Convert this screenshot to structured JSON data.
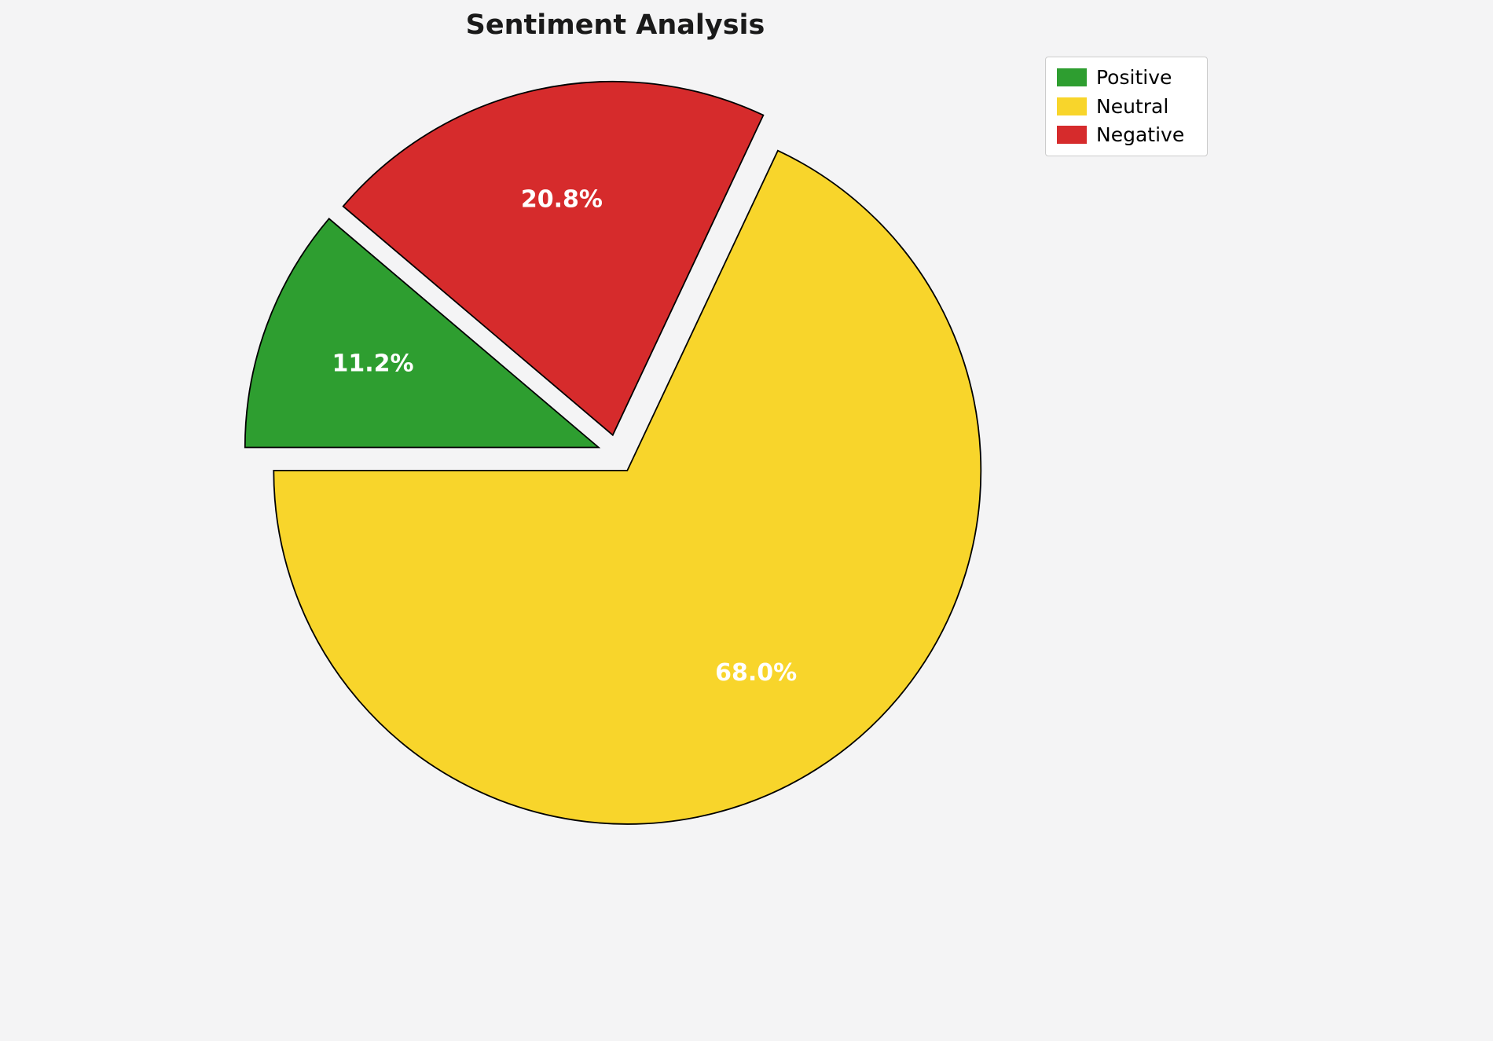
{
  "title": "Sentiment Analysis",
  "chart_data": {
    "type": "pie",
    "title": "Sentiment Analysis",
    "slices": [
      {
        "label": "Positive",
        "value": 11.2,
        "pct_label": "11.2%",
        "color": "#2e9e30"
      },
      {
        "label": "Negative",
        "value": 20.8,
        "pct_label": "20.8%",
        "color": "#d62b2c"
      },
      {
        "label": "Neutral",
        "value": 68.0,
        "pct_label": "68.0%",
        "color": "#f8d52b"
      }
    ],
    "legend_items": [
      {
        "label": "Positive",
        "color": "#2e9e30"
      },
      {
        "label": "Neutral",
        "color": "#f8d52b"
      },
      {
        "label": "Negative",
        "color": "#d62b2c"
      }
    ],
    "legend_position": "upper right",
    "start_angle": 180,
    "direction": "clockwise",
    "explode": 0.055,
    "label_distance": 0.68,
    "label_color": "#ffffff",
    "edge_color": "#000000",
    "background_color": "#f4f4f5"
  }
}
